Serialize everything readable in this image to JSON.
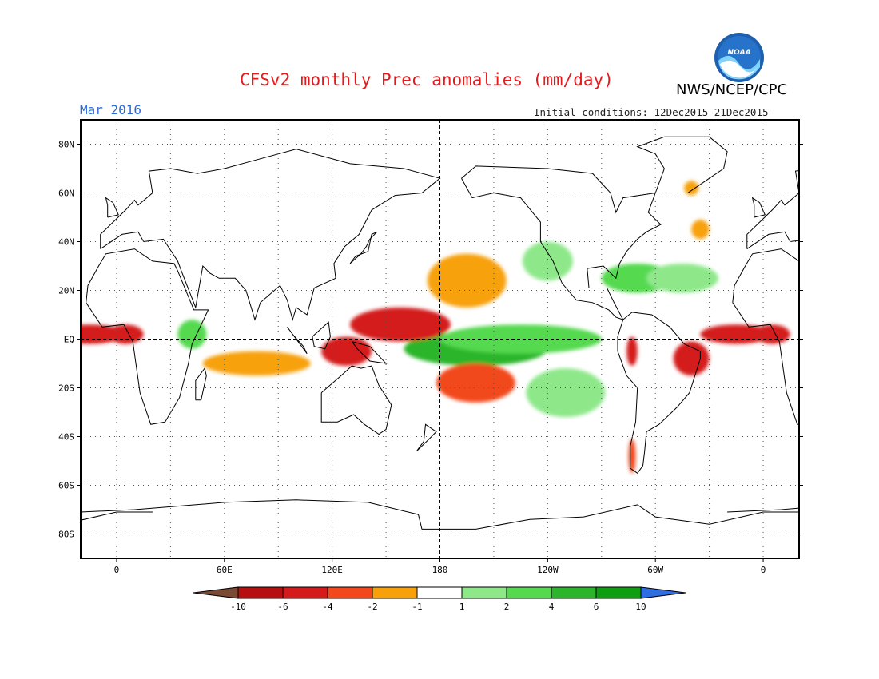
{
  "title": "CFSv2 monthly Prec anomalies (mm/day)",
  "organization": "NWS/NCEP/CPC",
  "logo_text": "NOAA",
  "period": "Mar 2016",
  "initial_conditions": "Initial conditions: 12Dec2015–21Dec2015",
  "colors": {
    "title": "#e41a1c",
    "period": "#2b6cd8",
    "levels": [
      "#7a4a34",
      "#b50f0f",
      "#d41b1b",
      "#f2481c",
      "#f7a10a",
      "#ffffff",
      "#8ee88a",
      "#54d94f",
      "#2cb52a",
      "#0f9e12",
      "#2f6ee0"
    ]
  },
  "chart_data": {
    "type": "map",
    "projection": "cylindrical equidistant",
    "xlim": [
      -20,
      380
    ],
    "ylim": [
      -90,
      90
    ],
    "lat_ticks": [
      "80N",
      "60N",
      "40N",
      "20N",
      "EQ",
      "20S",
      "40S",
      "60S",
      "80S"
    ],
    "lat_values": [
      80,
      60,
      40,
      20,
      0,
      -20,
      -40,
      -60,
      -80
    ],
    "lon_ticks": [
      "0",
      "60E",
      "120E",
      "180",
      "120W",
      "60W",
      "0"
    ],
    "lon_values": [
      0,
      60,
      120,
      180,
      240,
      300,
      360
    ],
    "reference_lines": [
      "EQ",
      "180"
    ],
    "grid": "dotted",
    "colorbar": {
      "labels": [
        "-10",
        "-6",
        "-4",
        "-2",
        "-1",
        "1",
        "2",
        "4",
        "6",
        "10"
      ],
      "bounds": [
        -10,
        -6,
        -4,
        -2,
        -1,
        1,
        2,
        4,
        6,
        10
      ]
    },
    "anomaly_regions": [
      {
        "name": "central-pacific-wet-core",
        "lon": 193,
        "lat": -5,
        "rx": 16,
        "ry": 3,
        "value": 12
      },
      {
        "name": "central-pacific-wet",
        "lon": 200,
        "lat": -4,
        "rx": 40,
        "ry": 7,
        "value": 5
      },
      {
        "name": "eastern-pacific-wet-band",
        "lon": 225,
        "lat": 0,
        "rx": 45,
        "ry": 6,
        "value": 3
      },
      {
        "name": "north-pacific-wet",
        "lon": 240,
        "lat": 32,
        "rx": 14,
        "ry": 8,
        "value": 1.5
      },
      {
        "name": "south-pacific-wet-tongue",
        "lon": 250,
        "lat": -22,
        "rx": 22,
        "ry": 10,
        "value": 1.5
      },
      {
        "name": "caribbean-wet",
        "lon": 290,
        "lat": 25,
        "rx": 20,
        "ry": 6,
        "value": 2
      },
      {
        "name": "north-atlantic-wet",
        "lon": 315,
        "lat": 25,
        "rx": 20,
        "ry": 6,
        "value": 1.5
      },
      {
        "name": "east-africa-wet",
        "lon": 42,
        "lat": 2,
        "rx": 8,
        "ry": 6,
        "value": 2
      },
      {
        "name": "western-pacific-dry",
        "lon": 158,
        "lat": 6,
        "rx": 28,
        "ry": 7,
        "value": -6
      },
      {
        "name": "subtropical-north-pacific-dry",
        "lon": 195,
        "lat": 24,
        "rx": 22,
        "ry": 11,
        "value": -2
      },
      {
        "name": "maritime-continent-dry",
        "lon": 128,
        "lat": -5,
        "rx": 14,
        "ry": 6,
        "value": -5
      },
      {
        "name": "south-pacific-dry",
        "lon": 200,
        "lat": -18,
        "rx": 22,
        "ry": 8,
        "value": -4
      },
      {
        "name": "indian-ocean-dry",
        "lon": 78,
        "lat": -10,
        "rx": 30,
        "ry": 5,
        "value": -2
      },
      {
        "name": "atlantic-itcz-dry",
        "lon": 345,
        "lat": 2,
        "rx": 20,
        "ry": 4,
        "value": -6
      },
      {
        "name": "west-africa-dry",
        "lon": 5,
        "lat": 2,
        "rx": 10,
        "ry": 4,
        "value": -6
      },
      {
        "name": "northeast-brazil-dry",
        "lon": 320,
        "lat": -8,
        "rx": 10,
        "ry": 7,
        "value": -5
      },
      {
        "name": "peru-dry",
        "lon": 287,
        "lat": -5,
        "rx": 3,
        "ry": 6,
        "value": -5
      },
      {
        "name": "patagonia-dry",
        "lon": 287,
        "lat": -48,
        "rx": 2,
        "ry": 7,
        "value": -4
      },
      {
        "name": "north-atlantic-dry",
        "lon": 325,
        "lat": 45,
        "rx": 5,
        "ry": 4,
        "value": -2
      },
      {
        "name": "greenland-dry",
        "lon": 320,
        "lat": 62,
        "rx": 4,
        "ry": 3,
        "value": -2
      }
    ]
  }
}
